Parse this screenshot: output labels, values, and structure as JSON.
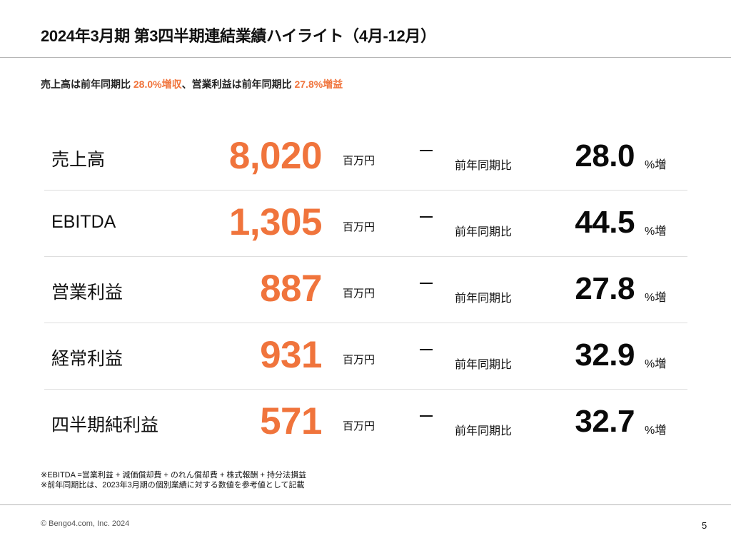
{
  "header": {
    "title": "2024年3月期 第3四半期連結業績ハイライト（4月-12月）"
  },
  "summary": {
    "part1": "売上高は前年同期比 ",
    "highlight1": "28.0%増収",
    "part2": "、営業利益は前年同期比 ",
    "highlight2": "27.8%増益"
  },
  "metrics": [
    {
      "label": "売上高",
      "value": "8,020",
      "unit": "百万円",
      "compare_label": "前年同期比",
      "change": "28.0",
      "change_unit": "%増"
    },
    {
      "label": "EBITDA",
      "value": "1,305",
      "unit": "百万円",
      "compare_label": "前年同期比",
      "change": "44.5",
      "change_unit": "%増"
    },
    {
      "label": "営業利益",
      "value": "887",
      "unit": "百万円",
      "compare_label": "前年同期比",
      "change": "27.8",
      "change_unit": "%増"
    },
    {
      "label": "経常利益",
      "value": "931",
      "unit": "百万円",
      "compare_label": "前年同期比",
      "change": "32.9",
      "change_unit": "%増"
    },
    {
      "label": "四半期純利益",
      "value": "571",
      "unit": "百万円",
      "compare_label": "前年同期比",
      "change": "32.7",
      "change_unit": "%増"
    }
  ],
  "notes": [
    "※EBITDA =営業利益 + 減価償却費 + のれん償却費 + 株式報酬 + 持分法損益",
    "※前年同期比は、2023年3月期の個別業績に対する数値を参考値として記載"
  ],
  "footer": {
    "copyright": "© Bengo4.com, Inc. 2024",
    "page_number": "5"
  },
  "colors": {
    "accent": "#f0743c",
    "text": "#111111",
    "rule": "#b5b5b5"
  }
}
